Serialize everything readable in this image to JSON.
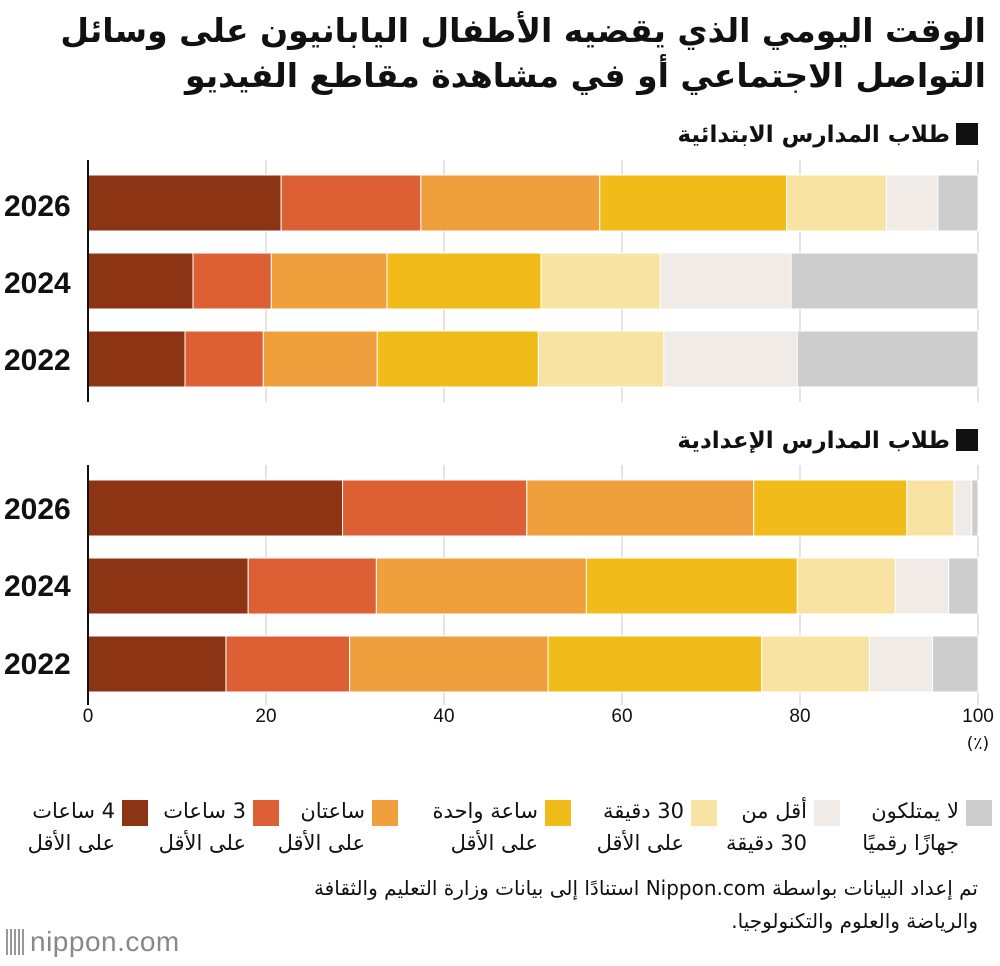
{
  "title": "الوقت اليومي الذي يقضيه الأطفال اليابانيون على وسائل التواصل الاجتماعي أو في مشاهدة مقاطع الفيديو",
  "colors": [
    "#8d3414",
    "#dc6034",
    "#f09f3d",
    "#f1bb1a",
    "#f8e3a3",
    "#f0ebe6",
    "#cdcdcd"
  ],
  "chart_data": {
    "type": "bar",
    "orientation": "horizontal",
    "stacked": true,
    "xlim": [
      0,
      100
    ],
    "xticks": [
      "0",
      "20",
      "40",
      "60",
      "80",
      "100"
    ],
    "xunit": "(٪)",
    "categories": [
      "أقل من 30 دقيقة",
      "30 دقيقة على الأقل",
      "ساعة واحدة على الأقل",
      "ساعتان على الأقل",
      "3 ساعات على الأقل",
      "4 ساعات على الأقل",
      "لا يمتلكون جهازًا رقميًا"
    ],
    "groups": [
      {
        "label": "طلاب المدارس الابتدائية",
        "years": [
          "2026",
          "2024",
          "2022"
        ],
        "series": [
          {
            "name": "4 ساعات على الأقل",
            "values": [
              21.7,
              11.8,
              10.9
            ]
          },
          {
            "name": "3 ساعات على الأقل",
            "values": [
              15.7,
              8.8,
              8.8
            ]
          },
          {
            "name": "ساعتان على الأقل",
            "values": [
              20.1,
              13.0,
              12.8
            ]
          },
          {
            "name": "ساعة واحدة على الأقل",
            "values": [
              21.0,
              17.3,
              18.1
            ]
          },
          {
            "name": "30 دقيقة على الأقل",
            "values": [
              11.2,
              13.4,
              14.1
            ]
          },
          {
            "name": "أقل من 30 دقيقة",
            "values": [
              5.8,
              14.7,
              15.0
            ]
          },
          {
            "name": "لا يمتلكون جهازًا رقميًا",
            "values": [
              4.5,
              21.0,
              20.3
            ]
          }
        ]
      },
      {
        "label": "طلاب المدارس الإعدادية",
        "years": [
          "2026",
          "2024",
          "2022"
        ],
        "series": [
          {
            "name": "4 ساعات على الأقل",
            "values": [
              28.6,
              18.0,
              15.5
            ]
          },
          {
            "name": "3 ساعات على الأقل",
            "values": [
              20.7,
              14.4,
              13.9
            ]
          },
          {
            "name": "ساعتان على الأقل",
            "values": [
              25.5,
              23.6,
              22.3
            ]
          },
          {
            "name": "ساعة واحدة على الأقل",
            "values": [
              17.2,
              23.7,
              24.0
            ]
          },
          {
            "name": "30 دقيقة على الأقل",
            "values": [
              5.3,
              11.0,
              12.1
            ]
          },
          {
            "name": "أقل من 30 دقيقة",
            "values": [
              2.0,
              6.0,
              7.1
            ]
          },
          {
            "name": "لا يمتلكون جهازًا رقميًا",
            "values": [
              0.7,
              3.3,
              5.1
            ]
          }
        ]
      }
    ]
  },
  "legend": [
    {
      "line1": "لا يمتلكون",
      "line2": "جهازًا رقميًا"
    },
    {
      "line1": "أقل من",
      "line2": "30 دقيقة"
    },
    {
      "line1": "30 دقيقة",
      "line2": "على الأقل"
    },
    {
      "line1": "ساعة واحدة",
      "line2": "على الأقل"
    },
    {
      "line1": "ساعتان",
      "line2": "على الأقل"
    },
    {
      "line1": "3 ساعات",
      "line2": "على الأقل"
    },
    {
      "line1": "4 ساعات",
      "line2": "على الأقل"
    }
  ],
  "source": "تم إعداد البيانات بواسطة Nippon.com استنادًا إلى بيانات وزارة التعليم والثقافة والرياضة والعلوم والتكنولوجيا.",
  "logo": "nippon.com"
}
